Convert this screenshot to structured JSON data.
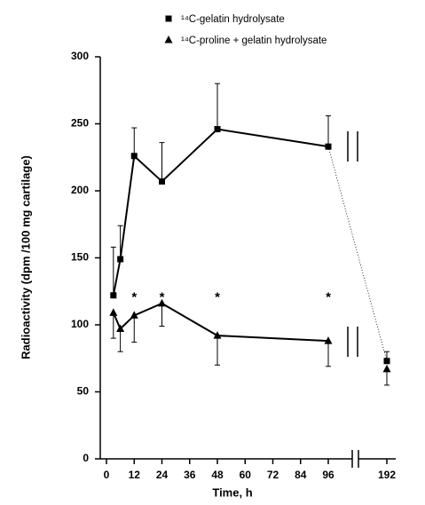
{
  "chart_data": {
    "type": "line",
    "x_label": "Time, h",
    "y_label": "Radioactivity (dpm /100 mg cartilage)",
    "x": [
      3,
      6,
      12,
      24,
      48,
      96,
      192
    ],
    "series": [
      {
        "name": "¹⁴C-gelatin hydrolysate",
        "marker": "square",
        "color": "#000000",
        "error_direction": "up",
        "values": [
          122,
          149,
          226,
          207,
          246,
          233,
          73
        ],
        "errors": [
          36,
          25,
          21,
          29,
          34,
          23,
          7
        ]
      },
      {
        "name": "¹⁴C-proline + gelatin hydrolysate",
        "marker": "triangle",
        "color": "#000000",
        "error_direction": "down",
        "values": [
          109,
          97,
          107,
          116,
          92,
          88,
          67
        ],
        "errors": [
          19,
          17,
          20,
          17,
          22,
          19,
          12
        ]
      }
    ],
    "annotations": [
      {
        "x": 12,
        "y": 122,
        "text": "*"
      },
      {
        "x": 24,
        "y": 122,
        "text": "*"
      },
      {
        "x": 48,
        "y": 122,
        "text": "*"
      },
      {
        "x": 96,
        "y": 122,
        "text": "*"
      }
    ],
    "xlim": [
      0,
      192
    ],
    "xticks": [
      0,
      12,
      24,
      36,
      48,
      60,
      72,
      84,
      96,
      192
    ],
    "x_axis_break": true,
    "ylim": [
      0,
      300
    ],
    "yticks": [
      0,
      50,
      100,
      150,
      200,
      250,
      300
    ],
    "legend": "top-right"
  }
}
